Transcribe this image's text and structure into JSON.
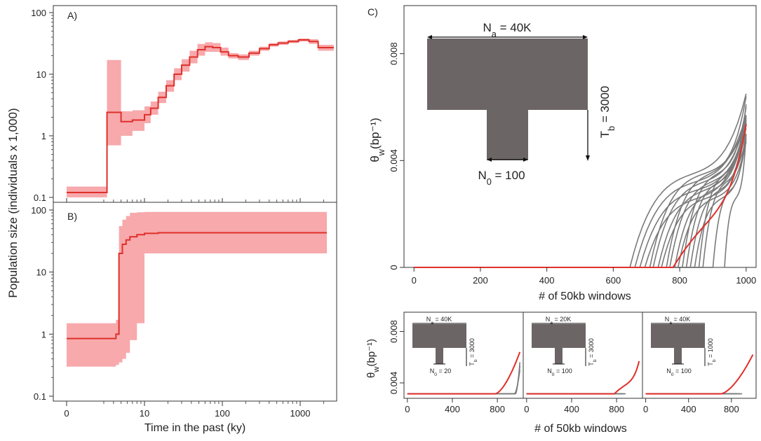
{
  "chart_data": [
    {
      "panel": "A)",
      "type": "line",
      "yscale": "log",
      "xscale": "log",
      "ylim": [
        0.1,
        100
      ],
      "yticks": [
        "0.1",
        "1",
        "10",
        "100"
      ],
      "xticks": [
        "0",
        "10",
        "100",
        "1000"
      ],
      "x": [
        0,
        3.3,
        3.3,
        5,
        5,
        7,
        7,
        10,
        10,
        12,
        12,
        15,
        15,
        19,
        19,
        24,
        24,
        30,
        30,
        38,
        38,
        48,
        48,
        60,
        60,
        75,
        75,
        95,
        95,
        120,
        120,
        160,
        160,
        220,
        220,
        300,
        300,
        400,
        400,
        520,
        520,
        700,
        700,
        950,
        950,
        1300,
        1300,
        1700,
        1700,
        2700
      ],
      "y": [
        0.12,
        0.12,
        2.4,
        2.4,
        1.7,
        1.7,
        1.8,
        1.8,
        2.2,
        2.2,
        2.8,
        2.8,
        4.2,
        4.2,
        6.5,
        6.5,
        10,
        10,
        14,
        14,
        19,
        19,
        25,
        25,
        28,
        28,
        27,
        27,
        23,
        23,
        20,
        20,
        19,
        19,
        22,
        22,
        26,
        26,
        30,
        30,
        32,
        32,
        34,
        34,
        36,
        36,
        34,
        34,
        27,
        27
      ],
      "lower": [
        0.1,
        0.1,
        0.7,
        0.7,
        1.0,
        1.0,
        1.2,
        1.2,
        1.6,
        1.6,
        2.2,
        2.2,
        3.4,
        3.4,
        5.2,
        5.2,
        8,
        8,
        11,
        11,
        15,
        15,
        20,
        20,
        23,
        23,
        23,
        23,
        20,
        20,
        18,
        18,
        17,
        17,
        20,
        20,
        24,
        24,
        28,
        28,
        30,
        30,
        32,
        32,
        34,
        34,
        31,
        31,
        24,
        24
      ],
      "upper": [
        0.15,
        0.15,
        17,
        17,
        2.5,
        2.5,
        2.6,
        2.6,
        3.0,
        3.0,
        3.6,
        3.6,
        5.2,
        5.2,
        8,
        8,
        12.5,
        12.5,
        17.5,
        17.5,
        24,
        24,
        31,
        31,
        33,
        33,
        32,
        32,
        27,
        27,
        22,
        22,
        21,
        21,
        24,
        24,
        28,
        28,
        32,
        32,
        34,
        34,
        36,
        36,
        38,
        38,
        37,
        37,
        30,
        30
      ]
    },
    {
      "panel": "B)",
      "type": "line",
      "yscale": "log",
      "xscale": "log",
      "ylim": [
        0.1,
        100
      ],
      "yticks": [
        "0.1",
        "1",
        "10",
        "100"
      ],
      "x": [
        0,
        4.3,
        4.3,
        4.7,
        4.7,
        5.2,
        5.2,
        5.8,
        5.8,
        6.5,
        6.5,
        8,
        8,
        10,
        10,
        15,
        15,
        2200
      ],
      "y": [
        0.85,
        0.85,
        1.0,
        1.0,
        20,
        20,
        28,
        28,
        33,
        33,
        37,
        37,
        40,
        40,
        42,
        42,
        43,
        43
      ],
      "lower": [
        0.3,
        0.3,
        0.32,
        0.32,
        0.35,
        0.35,
        0.4,
        0.4,
        0.5,
        0.5,
        0.8,
        0.8,
        1.5,
        1.5,
        20,
        20,
        20,
        20
      ],
      "upper": [
        1.5,
        1.5,
        1.7,
        1.7,
        55,
        55,
        70,
        70,
        80,
        80,
        90,
        90,
        92,
        92,
        93,
        93,
        93,
        93
      ]
    },
    {
      "panel": "C)",
      "type": "line",
      "ylim": [
        0,
        0.0098
      ],
      "yticks": [
        "0",
        "0.004",
        "0.008"
      ],
      "xticks": [
        "0",
        "200",
        "400",
        "600",
        "800",
        "1000"
      ],
      "xlabel": "# of 50kb windows",
      "ylabel": "θw(bp⁻¹)",
      "n_sim_lines": 20,
      "sim_starts": [
        650,
        665,
        680,
        695,
        710,
        720,
        735,
        745,
        760,
        770,
        785,
        795,
        808,
        820,
        832,
        845,
        858,
        870,
        900,
        935
      ],
      "red_start": 780,
      "red_end_value": 0.0056,
      "sim_end_values": [
        0.0065,
        0.006,
        0.0058,
        0.0063,
        0.0055,
        0.0059,
        0.0061,
        0.0057,
        0.0064,
        0.0058,
        0.0062,
        0.0056,
        0.006,
        0.0059,
        0.0063,
        0.0057,
        0.0061,
        0.0058,
        0.006,
        0.0059
      ],
      "inset": {
        "na": "N",
        "na_sub": "a",
        "na_val": " = 40K",
        "n0": "N",
        "n0_sub": "0",
        "n0_val": " = 100",
        "tb": "T",
        "tb_sub": "b",
        "tb_val": " = 3000"
      }
    },
    {
      "panel": "D1",
      "type": "line",
      "ylim": [
        0.0028,
        0.0095
      ],
      "yticks": [
        "0.004",
        "0.008"
      ],
      "xticks": [
        "0",
        "400",
        "800"
      ],
      "ylabel": "θw(bp⁻¹)",
      "n_sim_lines": 3,
      "sim_starts": [
        950,
        955,
        960
      ],
      "red_start": 780,
      "red_end_value": 0.0064,
      "inset": {
        "na": "N",
        "na_sub": "a",
        "na_val": " = 40K",
        "n0": "N",
        "n0_sub": "0",
        "n0_val": " = 20",
        "tb": "T",
        "tb_sub": "b",
        "tb_val": " = 3000"
      }
    },
    {
      "panel": "D2",
      "type": "line",
      "ylim": [
        0.0028,
        0.0095
      ],
      "xticks": [
        "0",
        "400",
        "800"
      ],
      "n_sim_lines": 18,
      "sim_starts": [
        600,
        620,
        640,
        660,
        680,
        700,
        715,
        730,
        745,
        760,
        775,
        790,
        805,
        820,
        835,
        850,
        865,
        880
      ],
      "red_start": 780,
      "red_end_value": 0.0058,
      "inset": {
        "na": "N",
        "na_sub": "a",
        "na_val": " = 20K",
        "n0": "N",
        "n0_sub": "0",
        "n0_val": " = 100",
        "tb": "T",
        "tb_sub": "b",
        "tb_val": " = 3000"
      }
    },
    {
      "panel": "D3",
      "type": "line",
      "ylim": [
        0.0028,
        0.0095
      ],
      "xticks": [
        "0",
        "400",
        "800"
      ],
      "n_sim_lines": 20,
      "sim_starts": [
        180,
        220,
        260,
        300,
        340,
        380,
        420,
        460,
        500,
        540,
        580,
        620,
        660,
        700,
        740,
        780,
        820,
        860,
        880,
        900
      ],
      "red_start": 700,
      "red_end_value": 0.0062,
      "inset": {
        "na": "N",
        "na_sub": "a",
        "na_val": " = 40K",
        "n0": "N",
        "n0_sub": "0",
        "n0_val": " = 100",
        "tb": "T",
        "tb_sub": "b",
        "tb_val": " = 1000"
      }
    }
  ],
  "labels": {
    "ylabel_ab": "Population size (individuals x 1,000)",
    "xlabel_ab": "Time in the past (ky)",
    "xlabel_c": "# of 50kb windows",
    "xlabel_d": "# of 50kb windows"
  },
  "colors": {
    "red": "#e0302a",
    "band": "#f7a9ac",
    "gray": "#7a7a7a",
    "inset": "#6c6565"
  }
}
